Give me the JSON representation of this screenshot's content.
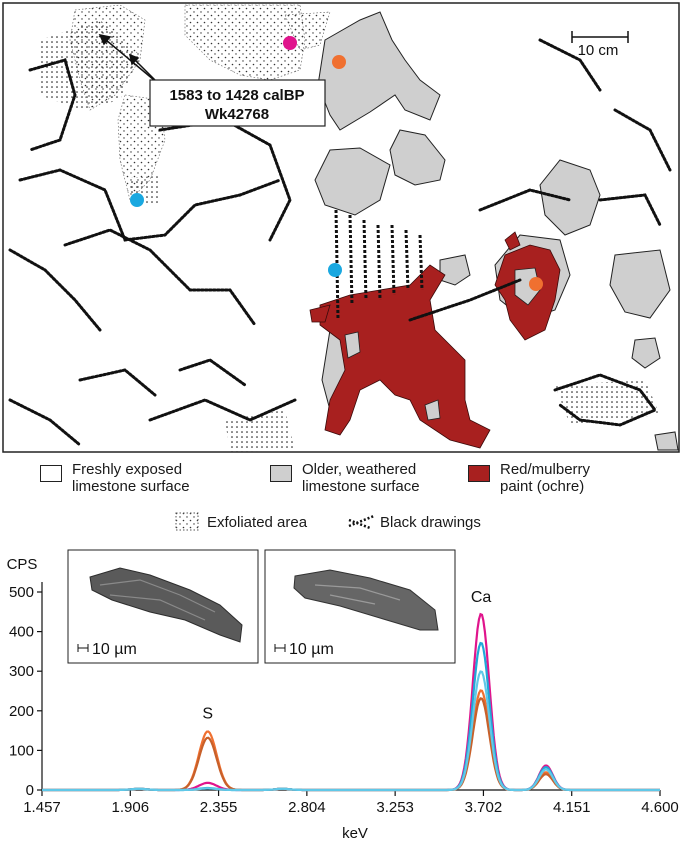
{
  "map": {
    "scale_label": "10 cm",
    "date_box": {
      "line1": "1583 to 1428 calBP",
      "line2": "Wk42768"
    },
    "markers": [
      {
        "color": "#e0148c"
      },
      {
        "color": "#f07030"
      },
      {
        "color": "#1aa8e0"
      },
      {
        "color": "#1aa8e0"
      },
      {
        "color": "#f07030"
      }
    ],
    "colors": {
      "fresh": "#ffffff",
      "weathered": "#cfcfcf",
      "ochre": "#a8201f",
      "drawing": "#111111"
    }
  },
  "legend": {
    "fresh": "Freshly exposed limestone surface",
    "fresh_l1": "Freshly exposed",
    "fresh_l2": "limestone surface",
    "weathered_l1": "Older, weathered",
    "weathered_l2": "limestone surface",
    "ochre_l1": "Red/mulberry",
    "ochre_l2": "paint (ochre)",
    "exfoliated": "Exfoliated area",
    "black": "Black drawings"
  },
  "chart_data": {
    "type": "line",
    "ylabel": "CPS",
    "xlabel": "keV",
    "x_ticks": [
      "1.457",
      "1.906",
      "2.355",
      "2.804",
      "3.253",
      "3.702",
      "4.151",
      "4.600"
    ],
    "y_ticks": [
      "0",
      "100",
      "200",
      "300",
      "400",
      "500"
    ],
    "xlim": [
      1.457,
      4.6
    ],
    "ylim": [
      0,
      500
    ],
    "peak_labels": [
      {
        "text": "S",
        "x": 2.3,
        "y": 150
      },
      {
        "text": "Ca",
        "x": 3.69,
        "y": 445
      }
    ],
    "insets": [
      {
        "scale": "10 µm"
      },
      {
        "scale": "10 µm"
      }
    ],
    "series": [
      {
        "color": "#e0148c",
        "peaks": [
          [
            2.3,
            18
          ],
          [
            3.69,
            445
          ],
          [
            4.02,
            62
          ]
        ]
      },
      {
        "color": "#f07030",
        "peaks": [
          [
            2.3,
            148
          ],
          [
            3.69,
            252
          ],
          [
            4.02,
            45
          ]
        ]
      },
      {
        "color": "#c8602a",
        "peaks": [
          [
            2.3,
            132
          ],
          [
            3.69,
            232
          ],
          [
            4.02,
            40
          ]
        ]
      },
      {
        "color": "#20a8d8",
        "peaks": [
          [
            2.3,
            5
          ],
          [
            3.69,
            372
          ],
          [
            4.02,
            58
          ]
        ]
      },
      {
        "color": "#60c8e8",
        "peaks": [
          [
            2.3,
            4
          ],
          [
            3.69,
            300
          ],
          [
            4.02,
            52
          ]
        ]
      }
    ]
  }
}
